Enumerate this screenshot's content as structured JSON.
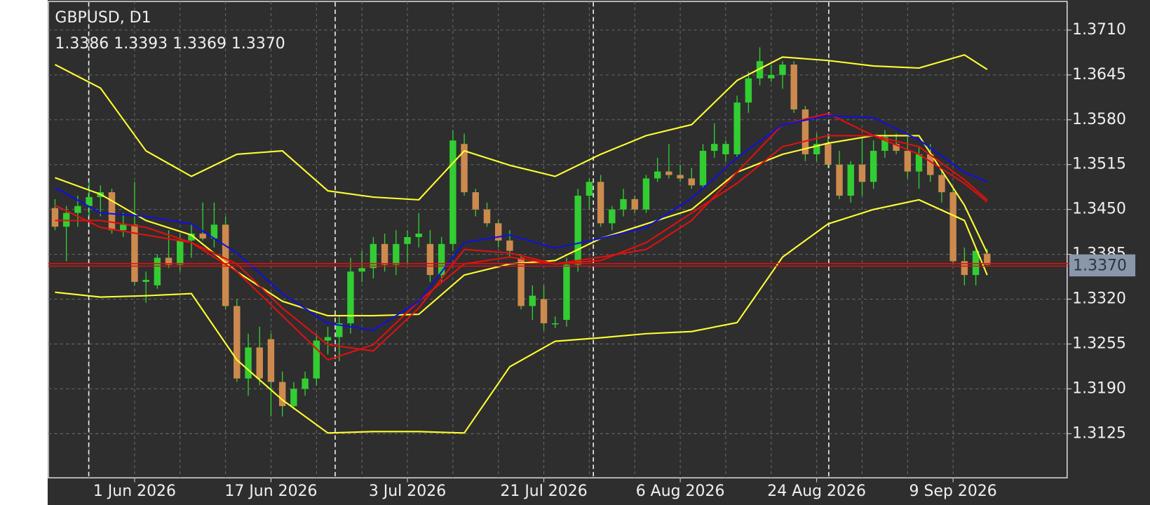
{
  "chart_data": {
    "type": "candlestick",
    "title": "GBPUSD, D1",
    "ohlc_text": "1.3386 1.3393 1.3369 1.3370",
    "categories": [
      null,
      null,
      null,
      null,
      null,
      null,
      null,
      "1 Jun 2026",
      null,
      null,
      null,
      null,
      null,
      null,
      null,
      null,
      null,
      null,
      null,
      "17 Jun 2026",
      null,
      null,
      null,
      null,
      null,
      null,
      null,
      null,
      null,
      null,
      null,
      "3 Jul 2026",
      null,
      null,
      null,
      null,
      null,
      null,
      null,
      null,
      null,
      null,
      null,
      "21 Jul 2026",
      null,
      null,
      null,
      null,
      null,
      null,
      null,
      null,
      null,
      null,
      null,
      "6 Aug 2026",
      null,
      null,
      null,
      null,
      null,
      null,
      null,
      null,
      null,
      null,
      null,
      "24 Aug 2026",
      null,
      null,
      null,
      null,
      null,
      null,
      null,
      null,
      null,
      null,
      null,
      "9 Sep 2026",
      null,
      null,
      null
    ],
    "open": [
      1.3452,
      1.3425,
      1.3445,
      1.3455,
      1.3468,
      1.3475,
      1.342,
      1.3428,
      1.3345,
      1.334,
      1.338,
      1.337,
      1.3405,
      1.3415,
      1.3408,
      1.3428,
      1.331,
      1.3205,
      1.325,
      1.3262,
      1.32,
      1.3165,
      1.319,
      1.3205,
      1.326,
      1.3265,
      1.3285,
      1.336,
      1.3365,
      1.34,
      1.337,
      1.34,
      1.341,
      1.34,
      1.3355,
      1.34,
      1.3545,
      1.3475,
      1.345,
      1.343,
      1.3405,
      1.338,
      1.331,
      1.332,
      1.3285,
      1.329,
      1.337,
      1.347,
      1.349,
      1.343,
      1.345,
      1.3465,
      1.345,
      1.3495,
      1.3505,
      1.35,
      1.3495,
      1.3485,
      1.3535,
      1.353,
      1.353,
      1.3605,
      1.364,
      1.364,
      1.3645,
      1.366,
      1.3595,
      1.353,
      1.3545,
      1.3515,
      1.347,
      1.3515,
      1.349,
      1.3535,
      1.3545,
      1.3535,
      1.3505,
      1.353,
      1.35,
      1.3475,
      1.3375,
      1.3355,
      1.3386
    ],
    "high": [
      1.3465,
      1.3455,
      1.347,
      1.349,
      1.3485,
      1.348,
      1.3445,
      1.349,
      1.336,
      1.3385,
      1.342,
      1.3415,
      1.343,
      1.346,
      1.346,
      1.344,
      1.332,
      1.327,
      1.328,
      1.327,
      1.3215,
      1.32,
      1.3215,
      1.327,
      1.328,
      1.3295,
      1.338,
      1.339,
      1.341,
      1.3415,
      1.342,
      1.342,
      1.3445,
      1.342,
      1.341,
      1.3565,
      1.356,
      1.348,
      1.346,
      1.3435,
      1.342,
      1.3385,
      1.334,
      1.334,
      1.3295,
      1.338,
      1.348,
      1.3495,
      1.35,
      1.3455,
      1.348,
      1.347,
      1.35,
      1.3525,
      1.3545,
      1.3515,
      1.351,
      1.3545,
      1.3575,
      1.355,
      1.3615,
      1.365,
      1.3685,
      1.366,
      1.3665,
      1.3665,
      1.36,
      1.356,
      1.356,
      1.3535,
      1.352,
      1.3555,
      1.355,
      1.3565,
      1.356,
      1.3555,
      1.354,
      1.3545,
      1.3505,
      1.348,
      1.3395,
      1.3395,
      1.3393
    ],
    "low": [
      1.342,
      1.3375,
      1.3425,
      1.344,
      1.344,
      1.3415,
      1.341,
      1.334,
      1.3315,
      1.3335,
      1.3365,
      1.336,
      1.338,
      1.3405,
      1.3395,
      1.3305,
      1.32,
      1.318,
      1.3195,
      1.315,
      1.315,
      1.316,
      1.318,
      1.3195,
      1.324,
      1.323,
      1.327,
      1.3345,
      1.335,
      1.336,
      1.3355,
      1.337,
      1.3395,
      1.3345,
      1.3345,
      1.339,
      1.347,
      1.344,
      1.3425,
      1.3395,
      1.338,
      1.3305,
      1.329,
      1.3275,
      1.3278,
      1.328,
      1.336,
      1.345,
      1.3425,
      1.342,
      1.344,
      1.3445,
      1.3445,
      1.349,
      1.3495,
      1.349,
      1.348,
      1.348,
      1.3525,
      1.352,
      1.3525,
      1.359,
      1.363,
      1.3635,
      1.3625,
      1.359,
      1.352,
      1.352,
      1.351,
      1.3465,
      1.346,
      1.347,
      1.348,
      1.3525,
      1.353,
      1.3495,
      1.348,
      1.349,
      1.346,
      1.337,
      1.334,
      1.334,
      1.3369
    ],
    "close": [
      1.3425,
      1.3445,
      1.3455,
      1.3468,
      1.3475,
      1.342,
      1.3428,
      1.3345,
      1.3348,
      1.338,
      1.337,
      1.3405,
      1.3415,
      1.3408,
      1.3428,
      1.331,
      1.3205,
      1.325,
      1.3205,
      1.32,
      1.3165,
      1.319,
      1.3205,
      1.326,
      1.3265,
      1.3285,
      1.336,
      1.3365,
      1.34,
      1.337,
      1.34,
      1.341,
      1.3415,
      1.3355,
      1.34,
      1.355,
      1.3475,
      1.345,
      1.343,
      1.3405,
      1.339,
      1.331,
      1.3325,
      1.3285,
      1.3285,
      1.337,
      1.347,
      1.349,
      1.343,
      1.345,
      1.3465,
      1.345,
      1.3495,
      1.3505,
      1.35,
      1.3495,
      1.3485,
      1.3535,
      1.3545,
      1.3545,
      1.3605,
      1.364,
      1.3665,
      1.3645,
      1.366,
      1.3595,
      1.353,
      1.3545,
      1.3515,
      1.347,
      1.3515,
      1.349,
      1.3535,
      1.3555,
      1.3535,
      1.3505,
      1.353,
      1.35,
      1.3475,
      1.3375,
      1.3355,
      1.339,
      1.337
    ],
    "up_color": "#32cd32",
    "down_color": "#cd8a4e",
    "wick_color": "#32cd32",
    "indicators": [
      {
        "color": "#ffff33",
        "x": [
          0,
          4,
          8,
          12,
          16,
          20,
          24,
          28,
          32,
          36,
          40,
          44,
          48,
          52,
          56,
          60,
          64,
          68,
          72,
          76,
          80,
          82
        ],
        "values": [
          1.366,
          1.3626,
          1.3535,
          1.3498,
          1.353,
          1.3535,
          1.3477,
          1.3468,
          1.3464,
          1.3535,
          1.3514,
          1.3498,
          1.353,
          1.3557,
          1.3573,
          1.3637,
          1.3671,
          1.3666,
          1.3658,
          1.3655,
          1.3674,
          1.3653
        ]
      },
      {
        "color": "#ffff33",
        "x": [
          0,
          4,
          8,
          12,
          16,
          20,
          24,
          28,
          32,
          36,
          40,
          44,
          48,
          52,
          56,
          60,
          64,
          68,
          72,
          76,
          80,
          82
        ],
        "values": [
          1.3496,
          1.3472,
          1.3434,
          1.3413,
          1.336,
          1.3317,
          1.3296,
          1.3296,
          1.3298,
          1.3355,
          1.3371,
          1.3376,
          1.3408,
          1.3429,
          1.345,
          1.3504,
          1.353,
          1.3546,
          1.3557,
          1.3557,
          1.3456,
          1.3387
        ]
      },
      {
        "color": "#ffff33",
        "x": [
          0,
          4,
          8,
          12,
          16,
          20,
          24,
          28,
          32,
          36,
          40,
          44,
          48,
          52,
          56,
          60,
          64,
          68,
          72,
          76,
          80,
          82
        ],
        "values": [
          1.333,
          1.3323,
          1.3325,
          1.3328,
          1.3232,
          1.3174,
          1.3126,
          1.3128,
          1.3128,
          1.3126,
          1.3222,
          1.3259,
          1.3264,
          1.327,
          1.3273,
          1.3286,
          1.3381,
          1.3429,
          1.345,
          1.3464,
          1.3434,
          1.3355
        ]
      },
      {
        "color": "#e01010",
        "x": [
          0,
          4,
          8,
          12,
          16,
          20,
          24,
          28,
          32,
          36,
          40,
          44,
          48,
          52,
          56,
          60,
          64,
          68,
          72,
          76,
          80,
          82
        ],
        "values": [
          1.3434,
          1.3434,
          1.3424,
          1.3402,
          1.336,
          1.3296,
          1.3232,
          1.3254,
          1.3317,
          1.3371,
          1.3381,
          1.3371,
          1.3376,
          1.3402,
          1.3445,
          1.3488,
          1.3541,
          1.3557,
          1.3557,
          1.3541,
          1.3493,
          1.3464
        ]
      },
      {
        "color": "#e01010",
        "x": [
          0,
          4,
          8,
          12,
          16,
          20,
          24,
          28,
          32,
          36,
          40,
          44,
          48,
          52,
          56,
          60,
          64,
          68,
          72,
          76,
          80,
          82
        ],
        "values": [
          1.3456,
          1.3424,
          1.3413,
          1.3402,
          1.3371,
          1.3307,
          1.3254,
          1.3245,
          1.3307,
          1.3392,
          1.3387,
          1.3371,
          1.3381,
          1.3392,
          1.3434,
          1.3504,
          1.3573,
          1.3589,
          1.3557,
          1.353,
          1.3488,
          1.3461
        ]
      },
      {
        "color": "#1010e0",
        "x": [
          0,
          4,
          8,
          12,
          16,
          20,
          24,
          28,
          32,
          36,
          40,
          44,
          48,
          52,
          56,
          60,
          64,
          68,
          72,
          76,
          80,
          82
        ],
        "values": [
          1.3482,
          1.3445,
          1.344,
          1.3429,
          1.3387,
          1.3328,
          1.3285,
          1.3275,
          1.3317,
          1.3402,
          1.3413,
          1.3394,
          1.3408,
          1.3424,
          1.3466,
          1.3525,
          1.3573,
          1.3586,
          1.3583,
          1.3551,
          1.3504,
          1.349
        ]
      }
    ],
    "last_price": {
      "value": 1.337,
      "label": "1.3370"
    },
    "last_price_color": "#e01010",
    "ylim": [
      1.3061,
      1.37515
    ],
    "yticks": [
      1.3125,
      {
        "value": 1.319,
        "label": "1.3190"
      },
      1.3255,
      {
        "value": 1.332,
        "label": "1.3320"
      },
      1.3385,
      {
        "value": 1.345,
        "label": "1.3450"
      },
      1.3515,
      {
        "value": 1.358,
        "label": "1.3580"
      },
      1.3645,
      {
        "value": 1.371,
        "label": "1.3710"
      }
    ],
    "grid": true
  }
}
